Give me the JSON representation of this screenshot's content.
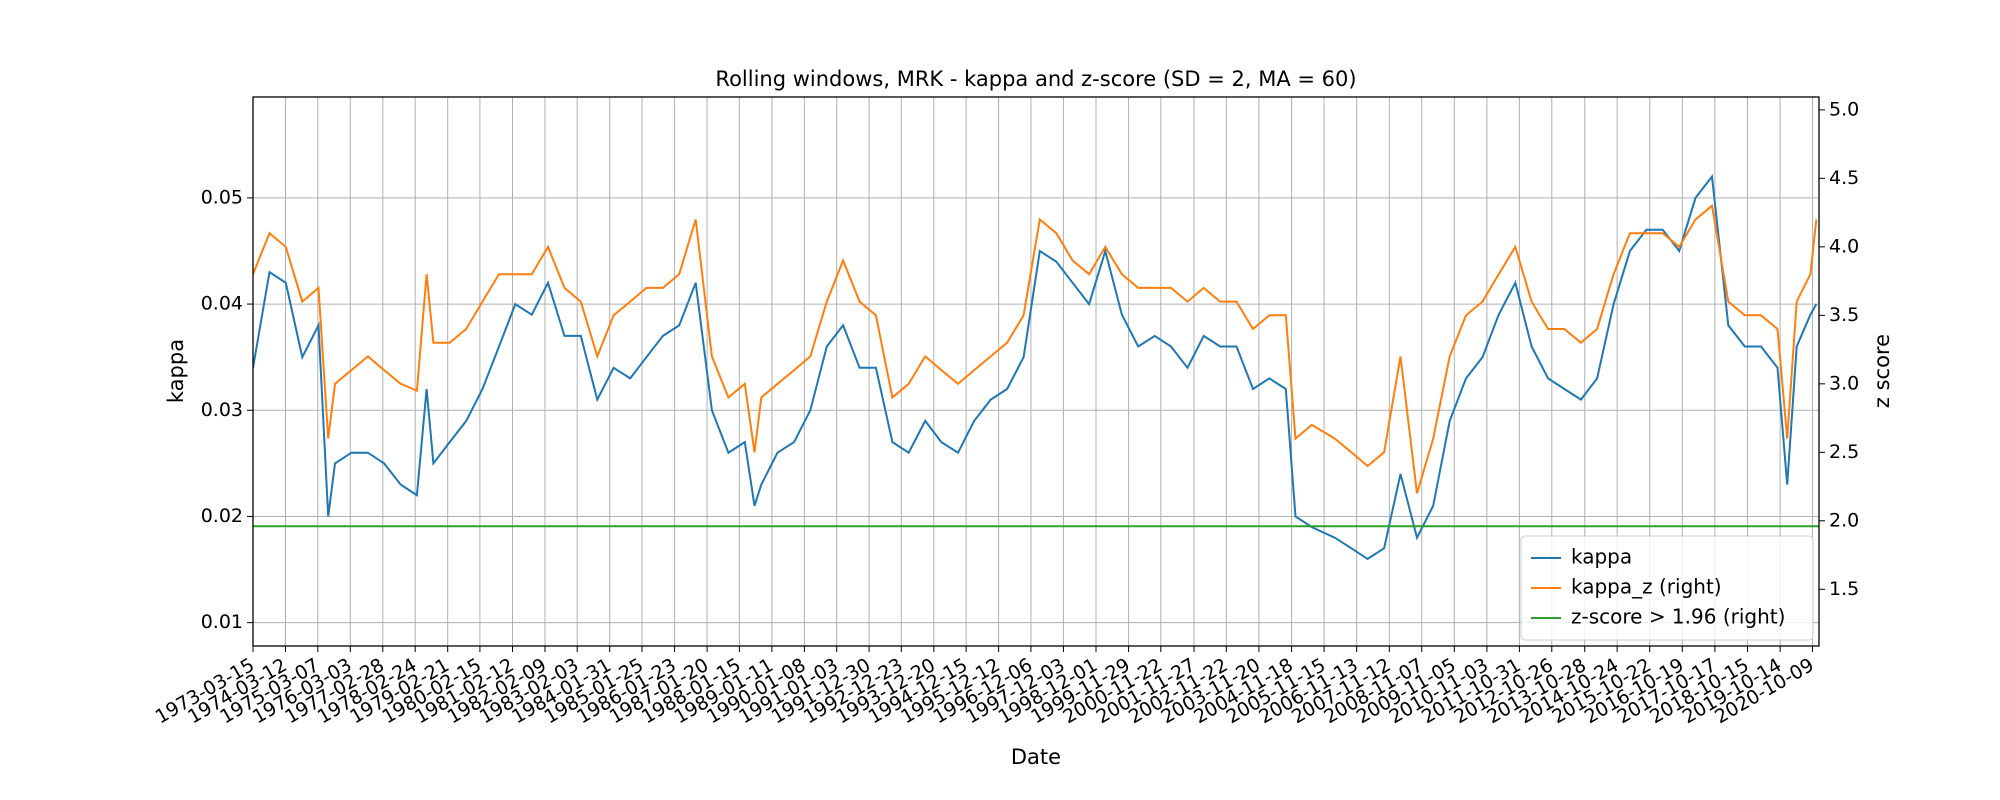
{
  "chart_data": {
    "type": "line",
    "title": "Rolling windows, MRK - kappa and z-score (SD = 2, MA = 60)",
    "xlabel": "Date",
    "ylabel": "kappa",
    "y2label": "z score",
    "x": [
      "1973-03-15",
      "1973-09-15",
      "1974-03-15",
      "1974-09-15",
      "1975-03-15",
      "1975-07-01",
      "1975-09-15",
      "1976-03-15",
      "1976-09-15",
      "1977-03-15",
      "1977-09-15",
      "1978-03-15",
      "1978-07-01",
      "1978-09-15",
      "1979-03-15",
      "1979-09-15",
      "1980-03-15",
      "1980-09-15",
      "1981-03-15",
      "1981-09-15",
      "1982-03-15",
      "1982-09-15",
      "1983-03-15",
      "1983-09-15",
      "1984-03-15",
      "1984-09-15",
      "1985-03-15",
      "1985-09-15",
      "1986-03-15",
      "1986-09-15",
      "1987-03-15",
      "1987-09-15",
      "1988-03-15",
      "1988-07-01",
      "1988-09-15",
      "1989-03-15",
      "1989-09-15",
      "1990-03-15",
      "1990-09-15",
      "1991-03-15",
      "1991-09-15",
      "1992-03-15",
      "1992-09-15",
      "1993-03-15",
      "1993-09-15",
      "1994-03-15",
      "1994-09-15",
      "1995-03-15",
      "1995-09-15",
      "1996-03-15",
      "1996-09-15",
      "1997-03-15",
      "1997-09-15",
      "1998-03-15",
      "1998-09-15",
      "1999-03-15",
      "1999-09-15",
      "2000-03-15",
      "2000-09-15",
      "2001-03-15",
      "2001-09-15",
      "2002-03-15",
      "2002-09-15",
      "2003-03-15",
      "2003-09-15",
      "2004-03-15",
      "2004-09-15",
      "2005-01-01",
      "2005-07-01",
      "2006-03-15",
      "2006-09-15",
      "2007-03-15",
      "2007-09-15",
      "2008-03-15",
      "2008-09-15",
      "2009-03-15",
      "2009-09-15",
      "2010-03-15",
      "2010-09-15",
      "2011-03-15",
      "2011-09-15",
      "2012-03-15",
      "2012-09-15",
      "2013-03-15",
      "2013-09-15",
      "2014-03-15",
      "2014-09-15",
      "2015-03-15",
      "2015-09-15",
      "2016-03-15",
      "2016-09-15",
      "2017-03-15",
      "2017-09-15",
      "2018-03-15",
      "2018-09-15",
      "2019-03-15",
      "2019-09-15",
      "2020-01-01",
      "2020-04-15",
      "2020-09-15",
      "2020-11-20"
    ],
    "series": [
      {
        "name": "kappa",
        "color": "#1f77b4",
        "axis": "y",
        "values": [
          0.034,
          0.043,
          0.042,
          0.035,
          0.038,
          0.02,
          0.025,
          0.026,
          0.026,
          0.025,
          0.023,
          0.022,
          0.032,
          0.025,
          0.027,
          0.029,
          0.032,
          0.036,
          0.04,
          0.039,
          0.042,
          0.037,
          0.037,
          0.031,
          0.034,
          0.033,
          0.035,
          0.037,
          0.038,
          0.042,
          0.03,
          0.026,
          0.027,
          0.021,
          0.023,
          0.026,
          0.027,
          0.03,
          0.036,
          0.038,
          0.034,
          0.034,
          0.027,
          0.026,
          0.029,
          0.027,
          0.026,
          0.029,
          0.031,
          0.032,
          0.035,
          0.045,
          0.044,
          0.042,
          0.04,
          0.045,
          0.039,
          0.036,
          0.037,
          0.036,
          0.034,
          0.037,
          0.036,
          0.036,
          0.032,
          0.033,
          0.032,
          0.02,
          0.019,
          0.018,
          0.017,
          0.016,
          0.017,
          0.024,
          0.018,
          0.021,
          0.029,
          0.033,
          0.035,
          0.039,
          0.042,
          0.036,
          0.033,
          0.032,
          0.031,
          0.033,
          0.04,
          0.045,
          0.047,
          0.047,
          0.045,
          0.05,
          0.052,
          0.038,
          0.036,
          0.036,
          0.034,
          0.023,
          0.036,
          0.039,
          0.04
        ]
      },
      {
        "name": "kappa_z (right)",
        "color": "#ff7f0e",
        "axis": "y2",
        "values": [
          3.8,
          4.1,
          4.0,
          3.6,
          3.7,
          2.6,
          3.0,
          3.1,
          3.2,
          3.1,
          3.0,
          2.95,
          3.8,
          3.3,
          3.3,
          3.4,
          3.6,
          3.8,
          3.8,
          3.8,
          4.0,
          3.7,
          3.6,
          3.2,
          3.5,
          3.6,
          3.7,
          3.7,
          3.8,
          4.2,
          3.2,
          2.9,
          3.0,
          2.5,
          2.9,
          3.0,
          3.1,
          3.2,
          3.6,
          3.9,
          3.6,
          3.5,
          2.9,
          3.0,
          3.2,
          3.1,
          3.0,
          3.1,
          3.2,
          3.3,
          3.5,
          4.2,
          4.1,
          3.9,
          3.8,
          4.0,
          3.8,
          3.7,
          3.7,
          3.7,
          3.6,
          3.7,
          3.6,
          3.6,
          3.4,
          3.5,
          3.5,
          2.6,
          2.7,
          2.6,
          2.5,
          2.4,
          2.5,
          3.2,
          2.2,
          2.6,
          3.2,
          3.5,
          3.6,
          3.8,
          4.0,
          3.6,
          3.4,
          3.4,
          3.3,
          3.4,
          3.8,
          4.1,
          4.1,
          4.1,
          4.0,
          4.2,
          4.3,
          3.6,
          3.5,
          3.5,
          3.4,
          2.6,
          3.6,
          3.8,
          4.2
        ]
      }
    ],
    "hline": {
      "name": "z-score > 1.96 (right)",
      "color": "#2ca02c",
      "value": 1.96,
      "axis": "y2"
    },
    "xlim": [
      "1973-03-15",
      "2020-12-20"
    ],
    "xticks": [
      "1973-03-15",
      "1974-03-12",
      "1975-03-07",
      "1976-03-03",
      "1977-02-28",
      "1978-02-24",
      "1979-02-21",
      "1980-02-15",
      "1981-02-12",
      "1982-02-09",
      "1983-02-03",
      "1984-01-31",
      "1985-01-25",
      "1986-01-23",
      "1987-01-20",
      "1988-01-15",
      "1989-01-11",
      "1990-01-08",
      "1991-01-03",
      "1991-12-30",
      "1992-12-23",
      "1993-12-20",
      "1994-12-15",
      "1995-12-12",
      "1996-12-06",
      "1997-12-03",
      "1998-12-01",
      "1999-11-29",
      "2000-11-22",
      "2001-11-27",
      "2002-11-22",
      "2003-11-20",
      "2004-11-18",
      "2005-11-15",
      "2006-11-13",
      "2007-11-12",
      "2008-11-07",
      "2009-11-05",
      "2010-11-03",
      "2011-10-31",
      "2012-10-26",
      "2013-10-28",
      "2014-10-24",
      "2015-10-22",
      "2016-10-19",
      "2017-10-17",
      "2018-10-15",
      "2019-10-14",
      "2020-10-09"
    ],
    "ylim": [
      0.0078,
      0.0595
    ],
    "yticks": [
      0.01,
      0.02,
      0.03,
      0.04,
      0.05
    ],
    "y2lim": [
      1.086,
      5.094
    ],
    "y2ticks": [
      1.5,
      {
        "value": 2.0,
        "label": "2.0"
      },
      2.5,
      {
        "value": 3.0,
        "label": "3.0"
      },
      3.5,
      {
        "value": 4.0,
        "label": "4.0"
      },
      4.5,
      {
        "value": 5.0,
        "label": "5.0"
      }
    ],
    "grid": true,
    "legend": "lower right"
  }
}
